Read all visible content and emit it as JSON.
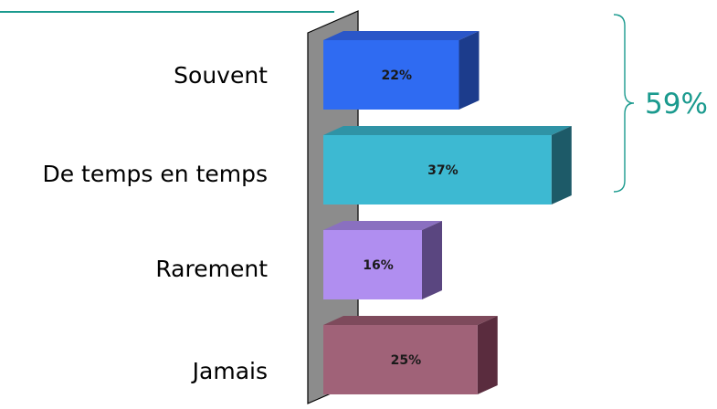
{
  "chart_data": {
    "type": "bar",
    "orientation": "horizontal",
    "style": "3d",
    "categories": [
      "Souvent",
      "De temps en temps",
      "Rarement",
      "Jamais"
    ],
    "values": [
      22,
      37,
      16,
      25
    ],
    "data_labels": [
      "22%",
      "37%",
      "16%",
      "25%"
    ],
    "unit": "%",
    "colors": [
      "#2f6bf2",
      "#3db9d2",
      "#b08ef0",
      "#a06278"
    ],
    "side_colors": [
      "#1c3c8c",
      "#1d5a68",
      "#5a4680",
      "#5a2c3e"
    ],
    "top_colors": [
      "#2a56c8",
      "#2f93a6",
      "#8a70c0",
      "#7e4a5c"
    ],
    "wall_color": "#8c8c8c",
    "xlim": [
      0,
      40
    ],
    "grid": false,
    "legend": false,
    "annotation": {
      "label": "59%",
      "spans_categories": [
        "Souvent",
        "De temps en temps"
      ],
      "value": 59,
      "color": "#1a9a8e"
    }
  }
}
